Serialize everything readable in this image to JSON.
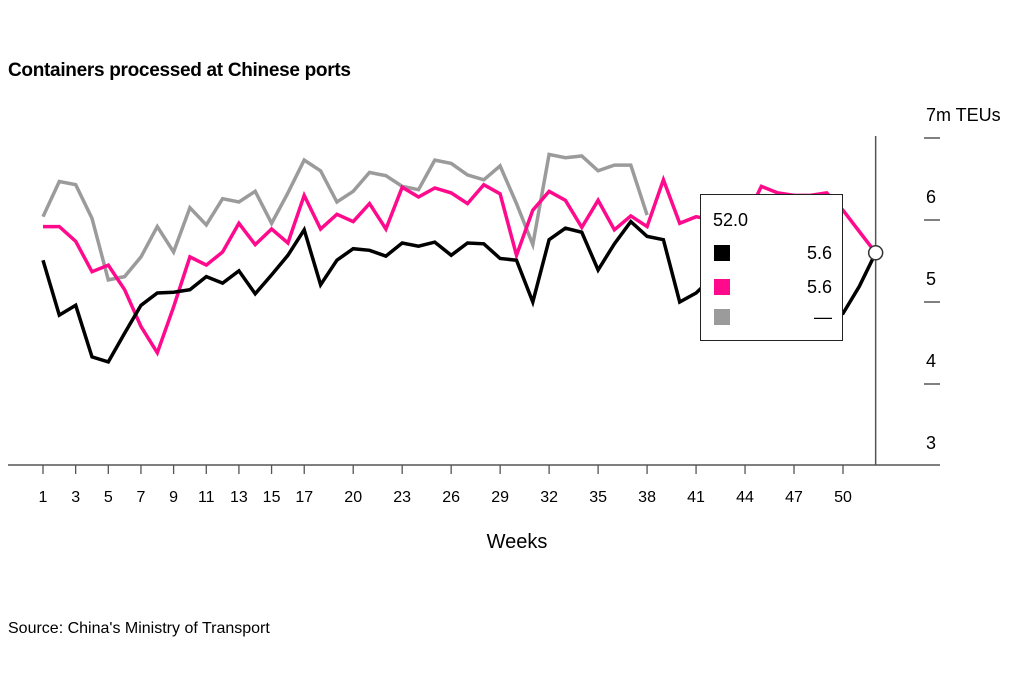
{
  "chart_data": {
    "type": "line",
    "title": "Containers processed at Chinese ports",
    "xlabel": "Weeks",
    "ylabel": "7m TEUs",
    "source": "Source: China's Ministry of Transport",
    "xlim": [
      1,
      52
    ],
    "ylim": [
      3,
      7
    ],
    "x_ticks": [
      1,
      3,
      5,
      7,
      9,
      11,
      13,
      15,
      17,
      20,
      23,
      26,
      29,
      32,
      35,
      38,
      41,
      44,
      47,
      50
    ],
    "y_ticks": [
      3,
      4,
      5,
      6,
      7
    ],
    "y_tick_labels": [
      "3",
      "4",
      "5",
      "6",
      "7m TEUs"
    ],
    "grid": false,
    "series": [
      {
        "color": "#000000",
        "x_start": 1,
        "values": [
          5.51,
          4.84,
          4.96,
          4.33,
          4.27,
          4.62,
          4.96,
          5.11,
          5.12,
          5.15,
          5.31,
          5.23,
          5.38,
          5.1,
          5.33,
          5.57,
          5.88,
          5.21,
          5.51,
          5.65,
          5.63,
          5.56,
          5.72,
          5.68,
          5.73,
          5.57,
          5.72,
          5.71,
          5.53,
          5.51,
          5.0,
          5.76,
          5.9,
          5.85,
          5.39,
          5.71,
          5.98,
          5.8,
          5.76,
          5.0,
          5.11,
          5.3,
          5.4,
          5.2,
          5.4,
          5.3,
          5.1,
          5.0,
          4.82,
          4.86,
          5.19,
          5.6
        ]
      },
      {
        "color": "#ff0a8c",
        "x_start": 1,
        "values": [
          5.92,
          5.92,
          5.74,
          5.37,
          5.45,
          5.15,
          4.7,
          4.38,
          4.94,
          5.55,
          5.45,
          5.61,
          5.96,
          5.7,
          5.89,
          5.72,
          6.3,
          5.89,
          6.07,
          5.98,
          6.2,
          5.89,
          6.4,
          6.28,
          6.39,
          6.33,
          6.2,
          6.43,
          6.32,
          5.57,
          6.12,
          6.35,
          6.24,
          5.91,
          6.24,
          5.88,
          6.05,
          5.92,
          6.49,
          5.96,
          6.04,
          6.0,
          6.05,
          6.0,
          6.41,
          6.33,
          6.3,
          6.3,
          6.33,
          6.12,
          5.86,
          5.6
        ]
      },
      {
        "color": "#9b9b9b",
        "x_start": 1,
        "values": [
          6.04,
          6.47,
          6.43,
          6.02,
          5.27,
          5.31,
          5.55,
          5.92,
          5.61,
          6.15,
          5.94,
          6.26,
          6.22,
          6.35,
          5.96,
          6.33,
          6.73,
          6.6,
          6.22,
          6.35,
          6.58,
          6.54,
          6.41,
          6.37,
          6.73,
          6.69,
          6.55,
          6.49,
          6.66,
          6.2,
          5.7,
          6.8,
          6.76,
          6.78,
          6.6,
          6.67,
          6.67,
          6.06
        ]
      }
    ],
    "cursor": {
      "x": 52,
      "y": 5.6
    }
  },
  "tooltip": {
    "header": "52.0",
    "rows": [
      {
        "color": "#000000",
        "value": "5.6"
      },
      {
        "color": "#ff0a8c",
        "value": "5.6"
      },
      {
        "color": "#9b9b9b",
        "value": "—"
      }
    ]
  }
}
